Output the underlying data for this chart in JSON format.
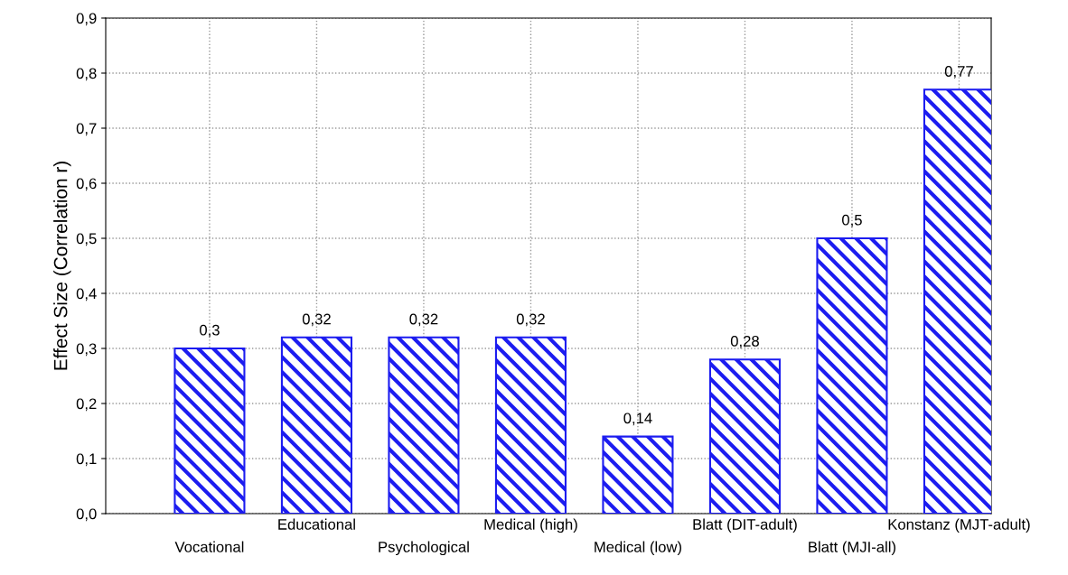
{
  "chart_data": {
    "type": "bar",
    "ylabel": "Effect Size (Correlation r)",
    "categories": [
      "Vocational",
      "Educational",
      "Psychological",
      "Medical (high)",
      "Medical (low)",
      "Blatt (DIT-adult)",
      "Blatt (MJI-all)",
      "Konstanz (MJT-adult)"
    ],
    "values": [
      0.3,
      0.32,
      0.32,
      0.32,
      0.14,
      0.28,
      0.5,
      0.77
    ],
    "value_labels": [
      "0,3",
      "0,32",
      "0,32",
      "0,32",
      "0,14",
      "0,28",
      "0,5",
      "0,77"
    ],
    "color": "#1c1cf0",
    "ylim": [
      0,
      0.9
    ],
    "yticks": [
      {
        "value": 0,
        "label": "0,0"
      },
      {
        "value": 0.1,
        "label": "0,1"
      },
      {
        "value": 0.2,
        "label": "0,2"
      },
      {
        "value": 0.3,
        "label": "0,3"
      },
      {
        "value": 0.4,
        "label": "0,4"
      },
      {
        "value": 0.5,
        "label": "0,5"
      },
      {
        "value": 0.6,
        "label": "0,6"
      },
      {
        "value": 0.7,
        "label": "0,7"
      },
      {
        "value": 0.8,
        "label": "0,8"
      },
      {
        "value": 0.9,
        "label": "0,9"
      }
    ],
    "grid": true
  }
}
